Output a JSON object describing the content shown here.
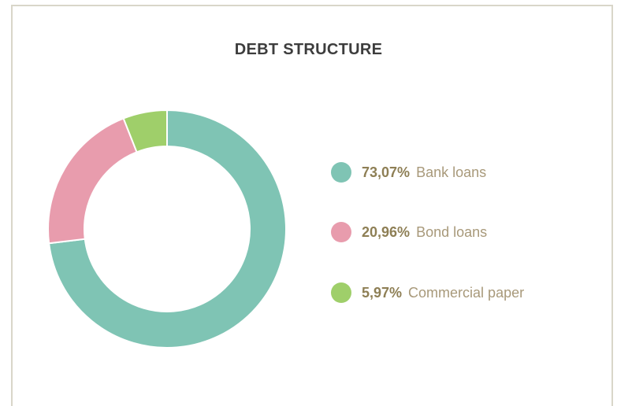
{
  "chart_data": {
    "type": "pie",
    "title": "DEBT STRUCTURE",
    "donut": true,
    "legend_position": "right",
    "slices": [
      {
        "percent_label": "73,07%",
        "label": "Bank loans",
        "value": 73.07,
        "color": "#7fc4b4"
      },
      {
        "percent_label": "20,96%",
        "label": "Bond loans",
        "value": 20.96,
        "color": "#e89cad"
      },
      {
        "percent_label": "5,97%",
        "label": "Commercial paper",
        "value": 5.97,
        "color": "#9fcf6a"
      }
    ]
  }
}
